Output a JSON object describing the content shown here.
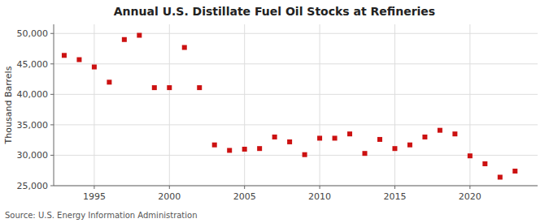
{
  "chart_data": {
    "type": "scatter",
    "title": "Annual U.S. Distillate Fuel Oil Stocks at Refineries",
    "y_label": "Thousand Barrels",
    "annotations": [
      "Source: U.S. Energy Information Administration"
    ],
    "x": [
      1993,
      1994,
      1995,
      1996,
      1997,
      1998,
      1999,
      2000,
      2001,
      2002,
      2003,
      2004,
      2005,
      2006,
      2007,
      2008,
      2009,
      2010,
      2011,
      2012,
      2013,
      2014,
      2015,
      2016,
      2017,
      2018,
      2019,
      2020,
      2021,
      2022,
      2023
    ],
    "values": [
      46400,
      45700,
      44500,
      42000,
      49000,
      49700,
      41100,
      41100,
      47700,
      41100,
      31700,
      30800,
      31000,
      31100,
      33000,
      32200,
      30100,
      32800,
      32800,
      33500,
      30300,
      32600,
      31100,
      31700,
      33000,
      34100,
      33500,
      29900,
      28600,
      26400,
      27400
    ],
    "color": "#cc1111",
    "marker": "square",
    "xlim": [
      1992.3,
      2024.5
    ],
    "ylim": [
      25000,
      51500
    ],
    "xticks": [
      1995,
      2000,
      2005,
      2010,
      2015,
      2020
    ],
    "yticks": [
      {
        "value": 25000,
        "label": "25,000"
      },
      {
        "value": 30000,
        "label": "30,000"
      },
      {
        "value": 35000,
        "label": "35,000"
      },
      {
        "value": 40000,
        "label": "40,000"
      },
      {
        "value": 45000,
        "label": "45,000"
      },
      {
        "value": 50000,
        "label": "50,000"
      }
    ],
    "grid": true
  }
}
